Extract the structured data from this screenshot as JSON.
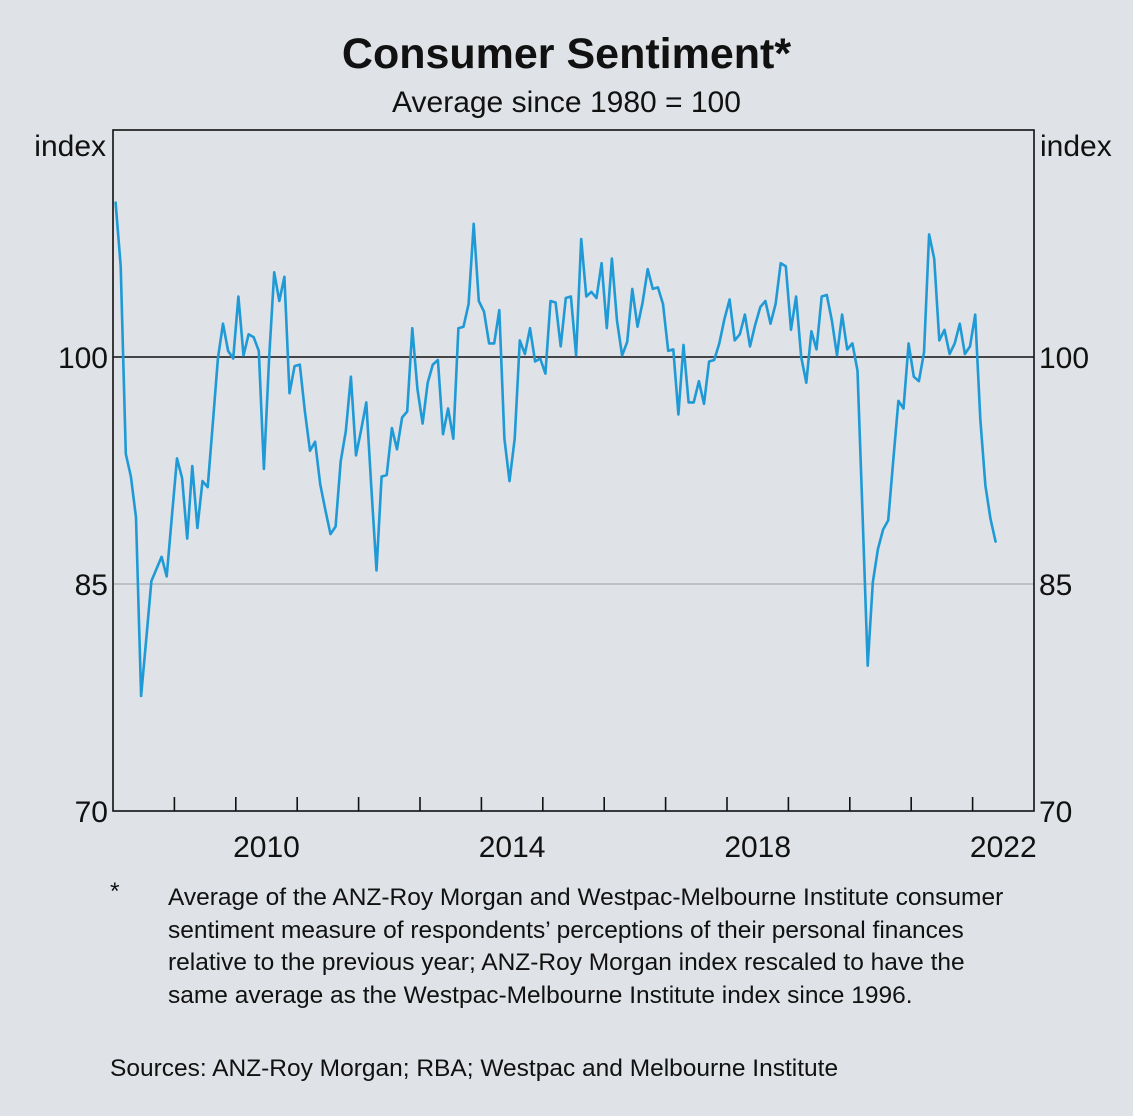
{
  "chart_data": {
    "type": "line",
    "title": "Consumer Sentiment*",
    "subtitle": "Average since 1980 = 100",
    "ylabel_left": "index",
    "ylabel_right": "index",
    "xlabel": "",
    "ylim": [
      70,
      115
    ],
    "yticks": [
      70,
      85,
      100
    ],
    "ytick_labels": [
      "70",
      "85",
      "100"
    ],
    "reference_line": 100,
    "xlim": [
      "2008-01",
      "2023-01"
    ],
    "x_year_ticks": [
      2008,
      2009,
      2010,
      2011,
      2012,
      2013,
      2014,
      2015,
      2016,
      2017,
      2018,
      2019,
      2020,
      2021,
      2022
    ],
    "xtick_labels": [
      {
        "year": 2010,
        "label": "2010"
      },
      {
        "year": 2014,
        "label": "2014"
      },
      {
        "year": 2018,
        "label": "2018"
      },
      {
        "year": 2022,
        "label": "2022"
      }
    ],
    "frequency": "monthly",
    "start": "2008-01",
    "grid": "horizontal at 85 (light), 100 (black reference)",
    "legend": "none",
    "series": [
      {
        "name": "Consumer Sentiment",
        "color": "#1f9ad6",
        "values": [
          110.2,
          106.0,
          93.6,
          92.1,
          89.4,
          77.6,
          81.4,
          85.2,
          86.0,
          86.8,
          85.5,
          89.4,
          93.3,
          92.0,
          88.0,
          92.8,
          88.7,
          91.8,
          91.4,
          95.6,
          99.9,
          102.2,
          100.4,
          99.9,
          104.0,
          100.1,
          101.5,
          101.3,
          100.4,
          92.6,
          99.9,
          105.6,
          103.7,
          105.3,
          97.6,
          99.4,
          99.5,
          96.4,
          93.8,
          94.4,
          91.6,
          89.9,
          88.3,
          88.8,
          93.1,
          95.1,
          98.7,
          93.5,
          95.2,
          97.0,
          91.3,
          85.9,
          92.1,
          92.2,
          95.3,
          93.9,
          96.0,
          96.4,
          101.9,
          97.9,
          95.6,
          98.3,
          99.5,
          99.8,
          94.9,
          96.6,
          94.6,
          101.9,
          102.0,
          103.5,
          108.8,
          103.7,
          103.0,
          100.9,
          100.9,
          103.1,
          94.6,
          91.8,
          94.6,
          101.1,
          100.2,
          101.9,
          99.7,
          99.9,
          98.9,
          103.7,
          103.6,
          100.7,
          103.9,
          104.0,
          100.1,
          107.8,
          104.0,
          104.3,
          103.9,
          106.2,
          101.9,
          106.5,
          102.4,
          100.1,
          101.0,
          104.5,
          102.0,
          103.6,
          105.8,
          104.5,
          104.6,
          103.5,
          100.4,
          100.5,
          96.2,
          100.8,
          97.0,
          97.0,
          98.4,
          96.9,
          99.7,
          99.8,
          100.9,
          102.5,
          103.8,
          101.1,
          101.5,
          102.8,
          100.7,
          102.1,
          103.3,
          103.7,
          102.2,
          103.5,
          106.2,
          106.0,
          101.8,
          104.0,
          100.0,
          98.3,
          101.7,
          100.5,
          104.0,
          104.1,
          102.4,
          100.1,
          102.8,
          100.5,
          100.9,
          99.1,
          89.5,
          79.6,
          85.1,
          87.3,
          88.6,
          89.2,
          93.2,
          97.1,
          96.6,
          100.9,
          98.7,
          98.4,
          100.3,
          108.1,
          106.5,
          101.1,
          101.8,
          100.2,
          100.9,
          102.2,
          100.2,
          100.7,
          102.8,
          95.9,
          91.5,
          89.3,
          87.8
        ]
      }
    ]
  },
  "footnote": {
    "marker": "*",
    "text": "Average of the ANZ-Roy Morgan and Westpac-Melbourne Institute consumer sentiment measure of respondents’ perceptions of their personal finances relative to the previous year; ANZ-Roy Morgan index rescaled to have the same average as the Westpac-Melbourne Institute index since 1996."
  },
  "sources": "Sources: ANZ-Roy Morgan; RBA; Westpac and Melbourne Institute",
  "colors": {
    "background": "#dfe2e6",
    "line": "#1f9ad6",
    "gridline": "#a9acb0",
    "axis": "#111111"
  }
}
